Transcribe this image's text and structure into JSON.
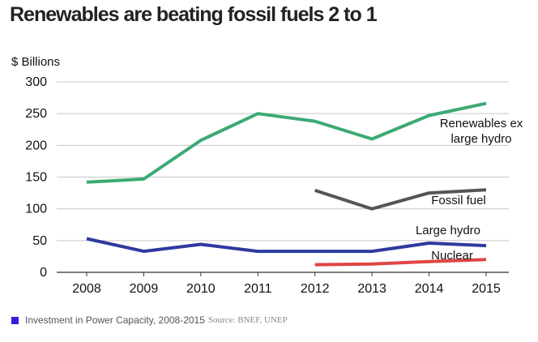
{
  "chart_data": {
    "type": "line",
    "title": "Renewables are beating fossil fuels 2 to 1",
    "ylabel": "$ Billions",
    "xlabel": "",
    "x": [
      "2008",
      "2009",
      "2010",
      "2011",
      "2012",
      "2013",
      "2014",
      "2015"
    ],
    "ylim": [
      0,
      300
    ],
    "yticks": [
      0,
      50,
      100,
      150,
      200,
      250,
      300
    ],
    "grid": "horizontal",
    "series": [
      {
        "name_lines": [
          "Renewables ex",
          "large hydro"
        ],
        "color": "#3daa73",
        "values": [
          142,
          147,
          208,
          250,
          238,
          210,
          247,
          266
        ]
      },
      {
        "name_lines": [
          "Fossil fuel"
        ],
        "color": "#555555",
        "values": [
          null,
          null,
          null,
          null,
          129,
          100,
          125,
          130
        ]
      },
      {
        "name_lines": [
          "Large hydro"
        ],
        "color": "#2e3a9e",
        "values": [
          53,
          33,
          44,
          33,
          33,
          33,
          46,
          42
        ]
      },
      {
        "name_lines": [
          "Nuclear"
        ],
        "color": "#e04545",
        "values": [
          null,
          null,
          null,
          null,
          12,
          13,
          17,
          20
        ]
      }
    ]
  },
  "footer": {
    "caption": "Investment in Power Capacity, 2008-2015",
    "source": "Source: BNEF, UNEP",
    "legend_color": "#2f1fd9"
  }
}
